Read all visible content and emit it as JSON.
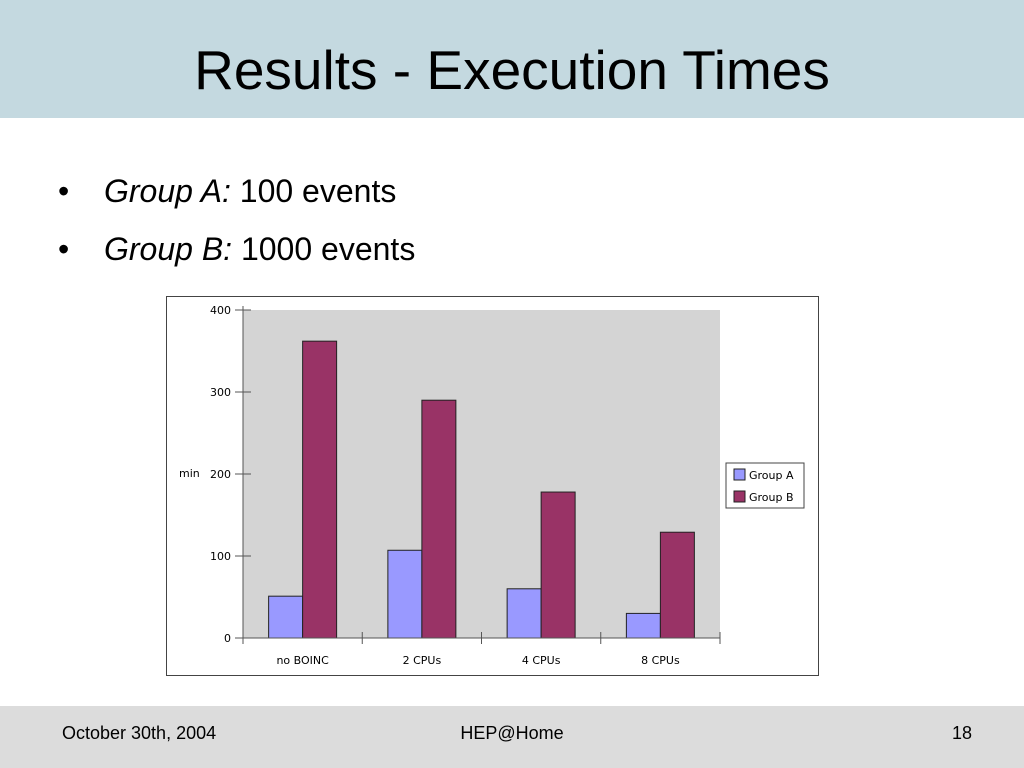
{
  "slide": {
    "title": "Results - Execution Times",
    "bullets": [
      {
        "label": "Group A:",
        "text": " 100 events"
      },
      {
        "label": "Group B:",
        "text": " 1000 events"
      }
    ]
  },
  "footer": {
    "date": "October 30th, 2004",
    "center": "HEP@Home",
    "page": "18"
  },
  "chart_data": {
    "type": "bar",
    "categories": [
      "no BOINC",
      "2 CPUs",
      "4 CPUs",
      "8 CPUs"
    ],
    "series": [
      {
        "name": "Group A",
        "values": [
          51,
          107,
          60,
          30
        ],
        "color": "#9999ff"
      },
      {
        "name": "Group B",
        "values": [
          362,
          290,
          178,
          129
        ],
        "color": "#993366"
      }
    ],
    "ylabel": "min",
    "xlabel": "",
    "ylim": [
      0,
      400
    ],
    "yticks": [
      0,
      100,
      200,
      300,
      400
    ],
    "plot_background": "#d4d4d4",
    "grid": false,
    "legend": "right"
  }
}
